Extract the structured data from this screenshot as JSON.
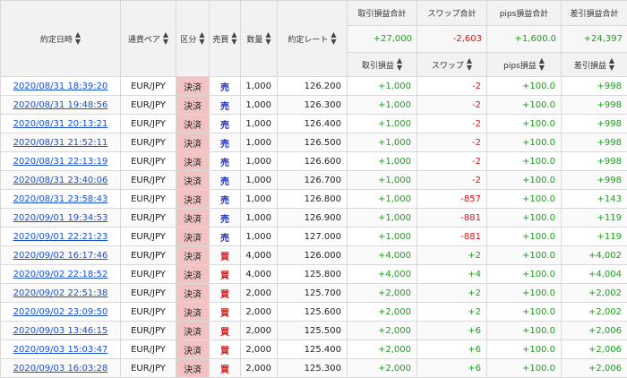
{
  "headers": {
    "date": "約定日時",
    "pair": "通貨ペア",
    "kind": "区分",
    "side": "売買",
    "qty": "数量",
    "rate": "約定レート",
    "pl_total": "取引損益合計",
    "swap_total": "スワップ合計",
    "pips_total": "pips損益合計",
    "net_total": "差引損益合計",
    "pl": "取引損益",
    "swap": "スワップ",
    "pips": "pips損益",
    "net": "差引損益",
    "sort_icon": "▲▼"
  },
  "totals": {
    "pl": "+27,000",
    "swap": "-2,603",
    "pips": "+1,600.0",
    "net": "+24,397"
  },
  "rows": [
    {
      "date": "2020/08/31 18:39:20",
      "pair": "EUR/JPY",
      "kind": "決済",
      "side": "売",
      "qty": "1,000",
      "rate": "126.200",
      "pl": "+1,000",
      "swap": "-2",
      "pips": "+100.0",
      "net": "+998"
    },
    {
      "date": "2020/08/31 19:48:56",
      "pair": "EUR/JPY",
      "kind": "決済",
      "side": "売",
      "qty": "1,000",
      "rate": "126.300",
      "pl": "+1,000",
      "swap": "-2",
      "pips": "+100.0",
      "net": "+998"
    },
    {
      "date": "2020/08/31 20:13:21",
      "pair": "EUR/JPY",
      "kind": "決済",
      "side": "売",
      "qty": "1,000",
      "rate": "126.400",
      "pl": "+1,000",
      "swap": "-2",
      "pips": "+100.0",
      "net": "+998"
    },
    {
      "date": "2020/08/31 21:52:11",
      "pair": "EUR/JPY",
      "kind": "決済",
      "side": "売",
      "qty": "1,000",
      "rate": "126.500",
      "pl": "+1,000",
      "swap": "-2",
      "pips": "+100.0",
      "net": "+998"
    },
    {
      "date": "2020/08/31 22:13:19",
      "pair": "EUR/JPY",
      "kind": "決済",
      "side": "売",
      "qty": "1,000",
      "rate": "126.600",
      "pl": "+1,000",
      "swap": "-2",
      "pips": "+100.0",
      "net": "+998"
    },
    {
      "date": "2020/08/31 23:40:06",
      "pair": "EUR/JPY",
      "kind": "決済",
      "side": "売",
      "qty": "1,000",
      "rate": "126.700",
      "pl": "+1,000",
      "swap": "-2",
      "pips": "+100.0",
      "net": "+998"
    },
    {
      "date": "2020/08/31 23:58:43",
      "pair": "EUR/JPY",
      "kind": "決済",
      "side": "売",
      "qty": "1,000",
      "rate": "126.800",
      "pl": "+1,000",
      "swap": "-857",
      "pips": "+100.0",
      "net": "+143"
    },
    {
      "date": "2020/09/01 19:34:53",
      "pair": "EUR/JPY",
      "kind": "決済",
      "side": "売",
      "qty": "1,000",
      "rate": "126.900",
      "pl": "+1,000",
      "swap": "-881",
      "pips": "+100.0",
      "net": "+119"
    },
    {
      "date": "2020/09/01 22:21:23",
      "pair": "EUR/JPY",
      "kind": "決済",
      "side": "売",
      "qty": "1,000",
      "rate": "127.000",
      "pl": "+1,000",
      "swap": "-881",
      "pips": "+100.0",
      "net": "+119"
    },
    {
      "date": "2020/09/02 16:17:46",
      "pair": "EUR/JPY",
      "kind": "決済",
      "side": "買",
      "qty": "4,000",
      "rate": "126.000",
      "pl": "+4,000",
      "swap": "+2",
      "pips": "+100.0",
      "net": "+4,002"
    },
    {
      "date": "2020/09/02 22:18:52",
      "pair": "EUR/JPY",
      "kind": "決済",
      "side": "買",
      "qty": "4,000",
      "rate": "125.800",
      "pl": "+4,000",
      "swap": "+4",
      "pips": "+100.0",
      "net": "+4,004"
    },
    {
      "date": "2020/09/02 22:51:38",
      "pair": "EUR/JPY",
      "kind": "決済",
      "side": "買",
      "qty": "2,000",
      "rate": "125.700",
      "pl": "+2,000",
      "swap": "+2",
      "pips": "+100.0",
      "net": "+2,002"
    },
    {
      "date": "2020/09/02 23:09:50",
      "pair": "EUR/JPY",
      "kind": "決済",
      "side": "買",
      "qty": "2,000",
      "rate": "125.600",
      "pl": "+2,000",
      "swap": "+2",
      "pips": "+100.0",
      "net": "+2,002"
    },
    {
      "date": "2020/09/03 13:46:15",
      "pair": "EUR/JPY",
      "kind": "決済",
      "side": "買",
      "qty": "2,000",
      "rate": "125.500",
      "pl": "+2,000",
      "swap": "+6",
      "pips": "+100.0",
      "net": "+2,006"
    },
    {
      "date": "2020/09/03 15:03:47",
      "pair": "EUR/JPY",
      "kind": "決済",
      "side": "買",
      "qty": "2,000",
      "rate": "125.400",
      "pl": "+2,000",
      "swap": "+6",
      "pips": "+100.0",
      "net": "+2,006"
    },
    {
      "date": "2020/09/03 16:03:28",
      "pair": "EUR/JPY",
      "kind": "決済",
      "side": "買",
      "qty": "2,000",
      "rate": "125.300",
      "pl": "+2,000",
      "swap": "+6",
      "pips": "+100.0",
      "net": "+2,006"
    }
  ],
  "colors": {
    "link": "#1a4fd6",
    "positive": "#1e9c1e",
    "negative": "#e01010",
    "sell": "#2030b8",
    "buy": "#d42020",
    "kind_bg": "#f2c3c3"
  }
}
